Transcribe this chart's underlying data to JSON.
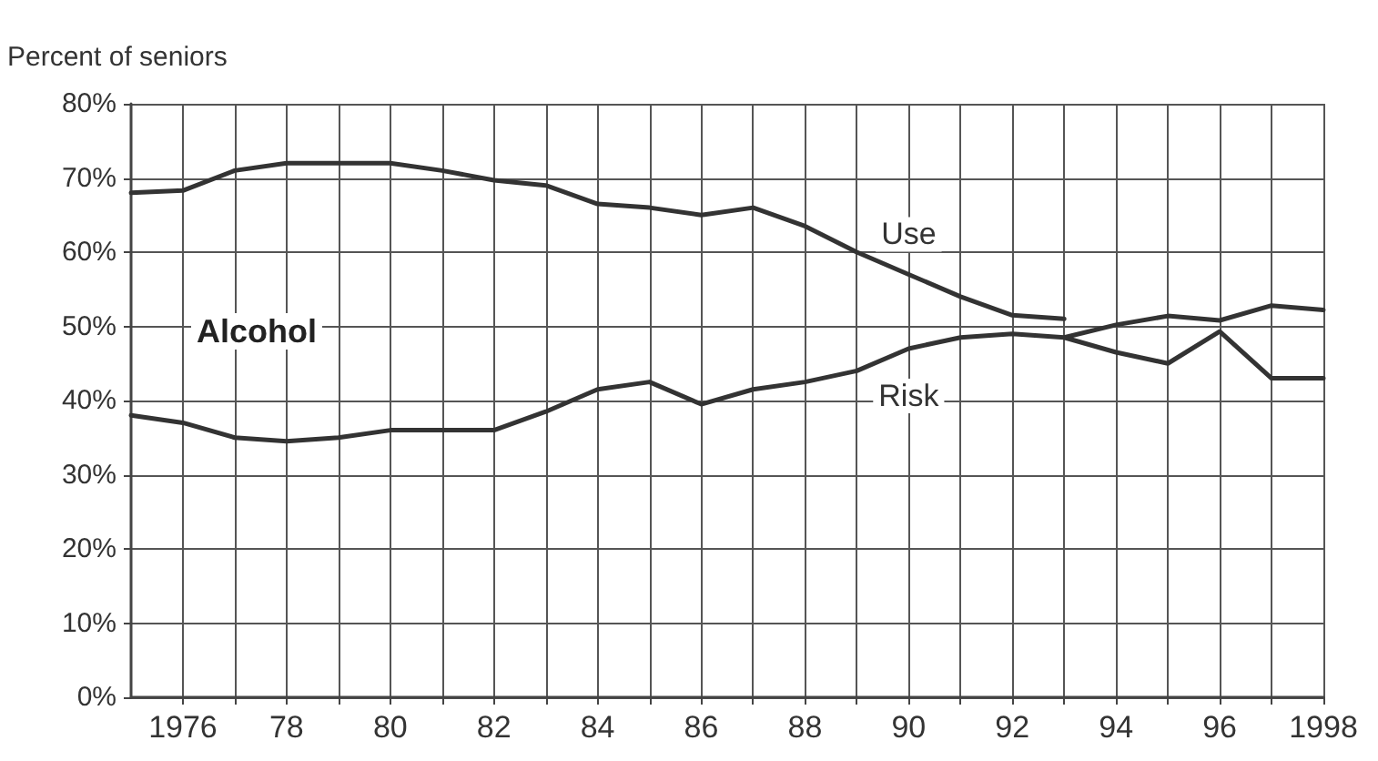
{
  "chart_data": {
    "type": "line",
    "ylabel": "Percent of seniors",
    "annotations": [
      "Alcohol"
    ],
    "xlim": [
      1975,
      1998
    ],
    "xticks": [
      {
        "value": 1976,
        "label": "1976"
      },
      {
        "value": 1977,
        "label": null
      },
      {
        "value": 1978,
        "label": "78"
      },
      {
        "value": 1979,
        "label": null
      },
      {
        "value": 1980,
        "label": "80"
      },
      {
        "value": 1981,
        "label": null
      },
      {
        "value": 1982,
        "label": "82"
      },
      {
        "value": 1983,
        "label": null
      },
      {
        "value": 1984,
        "label": "84"
      },
      {
        "value": 1985,
        "label": null
      },
      {
        "value": 1986,
        "label": "86"
      },
      {
        "value": 1987,
        "label": null
      },
      {
        "value": 1988,
        "label": "88"
      },
      {
        "value": 1989,
        "label": null
      },
      {
        "value": 1990,
        "label": "90"
      },
      {
        "value": 1991,
        "label": null
      },
      {
        "value": 1992,
        "label": "92"
      },
      {
        "value": 1993,
        "label": null
      },
      {
        "value": 1994,
        "label": "94"
      },
      {
        "value": 1995,
        "label": null
      },
      {
        "value": 1996,
        "label": "96"
      },
      {
        "value": 1997,
        "label": null
      },
      {
        "value": 1998,
        "label": "1998"
      }
    ],
    "ylim": [
      0,
      80
    ],
    "yticks": [
      {
        "value": 0,
        "label": "0%"
      },
      {
        "value": 10,
        "label": "10%"
      },
      {
        "value": 20,
        "label": "20%"
      },
      {
        "value": 30,
        "label": "30%"
      },
      {
        "value": 40,
        "label": "40%"
      },
      {
        "value": 50,
        "label": "50%"
      },
      {
        "value": 60,
        "label": "60%"
      },
      {
        "value": 70,
        "label": "70%"
      },
      {
        "value": 80,
        "label": "80%"
      }
    ],
    "grid": true,
    "legend": false,
    "marker": "none",
    "line_style": "solid",
    "series": [
      {
        "name": "Use",
        "color": "#333333",
        "x": [
          1975,
          1976,
          1977,
          1978,
          1979,
          1980,
          1981,
          1982,
          1983,
          1984,
          1985,
          1986,
          1987,
          1988,
          1989,
          1990,
          1991,
          1992,
          1993
        ],
        "values": [
          68,
          68.3,
          71,
          72,
          72,
          72,
          71,
          69.7,
          69,
          66.5,
          66,
          65,
          66,
          63.5,
          60,
          57,
          54,
          51.5,
          51
        ]
      },
      {
        "color": "#333333",
        "x": [
          1993,
          1994,
          1995,
          1996,
          1997,
          1998
        ],
        "values": [
          48.5,
          50.2,
          51.4,
          50.8,
          52.8,
          52.2
        ]
      },
      {
        "name": "Risk",
        "color": "#333333",
        "x": [
          1975,
          1976,
          1977,
          1978,
          1979,
          1980,
          1981,
          1982,
          1983,
          1984,
          1985,
          1986,
          1987,
          1988,
          1989,
          1990,
          1991,
          1992,
          1993,
          1994,
          1995,
          1996,
          1997,
          1998
        ],
        "values": [
          38,
          37,
          35,
          34.5,
          35,
          36,
          36,
          36,
          38.5,
          41.5,
          42.5,
          39.5,
          41.5,
          42.5,
          44,
          47,
          48.5,
          49,
          48.5,
          46.5,
          45,
          49.3,
          43,
          43
        ]
      }
    ]
  }
}
